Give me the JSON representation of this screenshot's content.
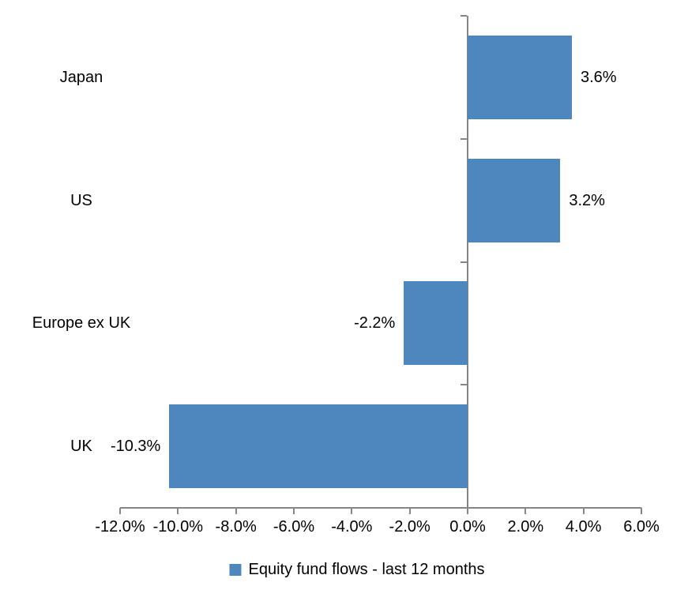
{
  "chart_data": {
    "type": "bar",
    "orientation": "horizontal",
    "title": "",
    "categories": [
      "Japan",
      "US",
      "Europe ex UK",
      "UK"
    ],
    "values": [
      3.6,
      3.2,
      -2.2,
      -10.3
    ],
    "data_labels": [
      "3.6%",
      "3.2%",
      "-2.2%",
      "-10.3%"
    ],
    "legend": "Equity fund flows - last 12 months",
    "legend_position": "bottom",
    "xlim": [
      -12,
      6
    ],
    "x_tick_values": [
      -12,
      -10,
      -8,
      -6,
      -4,
      -2,
      0,
      2,
      4,
      6
    ],
    "x_tick_labels": [
      "-12.0%",
      "-10.0%",
      "-8.0%",
      "-6.0%",
      "-4.0%",
      "-2.0%",
      "0.0%",
      "2.0%",
      "4.0%",
      "6.0%"
    ],
    "grid": "off",
    "data_label_position": "outside-end",
    "bar_color": "#4E87BD",
    "axis_color": "#868686",
    "text_color": "#000000"
  }
}
